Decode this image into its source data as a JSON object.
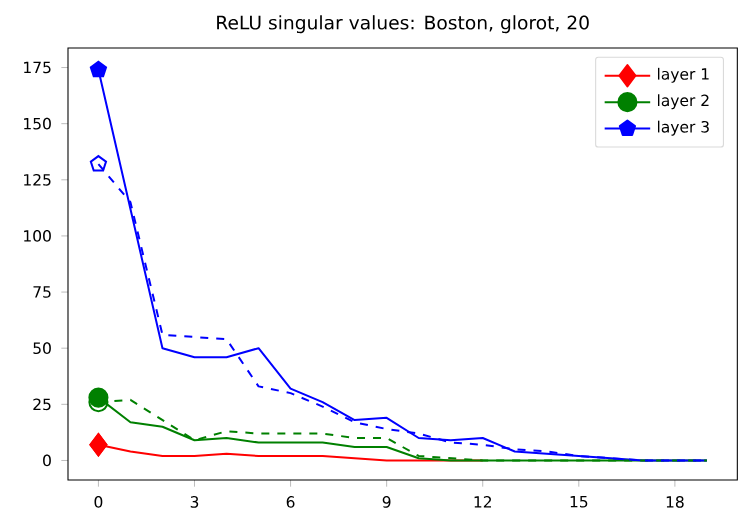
{
  "chart_data": {
    "type": "line",
    "title": "ReLU singular values: Boston, glorot, 20",
    "x": [
      0,
      1,
      2,
      3,
      4,
      5,
      6,
      7,
      8,
      9,
      10,
      11,
      12,
      13,
      14,
      15,
      16,
      17,
      18,
      19
    ],
    "series": [
      {
        "name": "layer 1",
        "color": "#ff0000",
        "line_style": "solid",
        "values": [
          7,
          4,
          2,
          2,
          3,
          2,
          2,
          2,
          1,
          0,
          0,
          0,
          0,
          null,
          null,
          null,
          null,
          null,
          null,
          null
        ]
      },
      {
        "name": "layer 2",
        "color": "#008000",
        "line_style": "solid",
        "values": [
          28,
          17,
          15,
          9,
          10,
          8,
          8,
          8,
          6,
          6,
          1,
          0,
          0,
          0,
          0,
          0,
          0,
          0,
          0,
          0
        ]
      },
      {
        "name": "layer 3",
        "color": "#0000ff",
        "line_style": "solid",
        "values": [
          174,
          112,
          50,
          46,
          46,
          50,
          32,
          26,
          18,
          19,
          10,
          9,
          10,
          4,
          3,
          2,
          1,
          0,
          0,
          0
        ]
      },
      {
        "color": "#008000",
        "line_style": "dashed",
        "values": [
          26,
          27,
          18,
          9,
          13,
          12,
          12,
          12,
          10,
          10,
          2,
          1,
          0,
          0,
          0,
          0,
          0,
          0,
          0,
          0
        ]
      },
      {
        "color": "#0000ff",
        "line_style": "dashed",
        "values": [
          132,
          115,
          56,
          55,
          54,
          33,
          30,
          24,
          17,
          14,
          12,
          8,
          7,
          5,
          4,
          2,
          1,
          0,
          0,
          0
        ]
      },
      {
        "type": "scatter",
        "color": "#ff0000",
        "marker": "diamond",
        "values": [
          7,
          null,
          null,
          null,
          null,
          null,
          null,
          null,
          null,
          null,
          null,
          null,
          null,
          null,
          null,
          null,
          null,
          null,
          null,
          null
        ]
      },
      {
        "type": "scatter",
        "color": "#008000",
        "marker": "circle",
        "values": [
          28,
          null,
          null,
          null,
          null,
          null,
          null,
          null,
          null,
          null,
          null,
          null,
          null,
          null,
          null,
          null,
          null,
          null,
          null,
          null
        ]
      },
      {
        "type": "scatter",
        "color": "#0000ff",
        "values": [
          174,
          null,
          null,
          null,
          null,
          null,
          null,
          null,
          null,
          null,
          null,
          null,
          null,
          null,
          null,
          null,
          null,
          null,
          null,
          null
        ]
      },
      {
        "type": "scatter",
        "color": "#ff0000",
        "marker": "diamond",
        "values": [
          7,
          null,
          null,
          null,
          null,
          null,
          null,
          null,
          null,
          null,
          null,
          null,
          null,
          null,
          null,
          null,
          null,
          null,
          null,
          null
        ]
      },
      {
        "type": "scatter",
        "color": "#008000",
        "marker": "circle",
        "values": [
          26,
          null,
          null,
          null,
          null,
          null,
          null,
          null,
          null,
          null,
          null,
          null,
          null,
          null,
          null,
          null,
          null,
          null,
          null,
          null
        ]
      },
      {
        "type": "scatter",
        "color": "#0000ff",
        "values": [
          132,
          null,
          null,
          null,
          null,
          null,
          null,
          null,
          null,
          null,
          null,
          null,
          null,
          null,
          null,
          null,
          null,
          null,
          null,
          null
        ]
      }
    ],
    "xlim": [
      -0.95,
      19.95
    ],
    "xticks": [
      0,
      3,
      6,
      9,
      12,
      15,
      18
    ],
    "ylim": [
      -8.7,
      183.7
    ],
    "yticks": [
      0,
      25,
      50,
      75,
      100,
      125,
      150,
      175
    ],
    "legend": "top right"
  }
}
